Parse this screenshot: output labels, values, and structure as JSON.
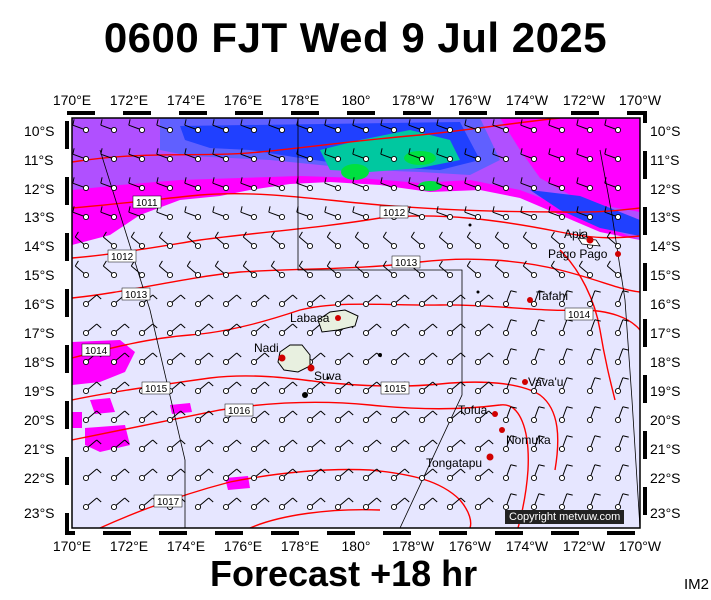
{
  "title": "0600 FJT Wed 9 Jul 2025",
  "subtitle": "Forecast +18 hr",
  "corner_code": "IM2",
  "copyright": "Copyright metvuw.com",
  "lon_labels": [
    "170°E",
    "172°E",
    "174°E",
    "176°E",
    "178°E",
    "180°",
    "178°W",
    "176°W",
    "174°W",
    "172°W",
    "170°W"
  ],
  "lat_labels": [
    "10°S",
    "11°S",
    "12°S",
    "13°S",
    "14°S",
    "15°S",
    "16°S",
    "17°S",
    "18°S",
    "19°S",
    "20°S",
    "21°S",
    "22°S",
    "23°S"
  ],
  "isobars": [
    "1011",
    "1012",
    "1012",
    "1013",
    "1013",
    "1014",
    "1014",
    "1015",
    "1015",
    "1016",
    "1017"
  ],
  "places": [
    {
      "name": "Apia",
      "color": "#d00000"
    },
    {
      "name": "Pago Pago",
      "color": "#d00000"
    },
    {
      "name": "Tafahi",
      "color": "#d00000"
    },
    {
      "name": "Labasa",
      "color": "#d00000"
    },
    {
      "name": "Nadi",
      "color": "#d00000"
    },
    {
      "name": "Suva",
      "color": "#d00000"
    },
    {
      "name": "Vava'u",
      "color": "#d00000"
    },
    {
      "name": "Tofua",
      "color": "#d00000"
    },
    {
      "name": "Nomuka",
      "color": "#d00000"
    },
    {
      "name": "Tongatapu",
      "color": "#d00000"
    }
  ],
  "colors": {
    "background": "#e6e6ff",
    "isobar": "#ff0000",
    "rain_light": "#ff00ff",
    "rain_medium": "#8000ff",
    "rain_heavy": "#2040ff",
    "rain_extreme": "#00e040"
  }
}
